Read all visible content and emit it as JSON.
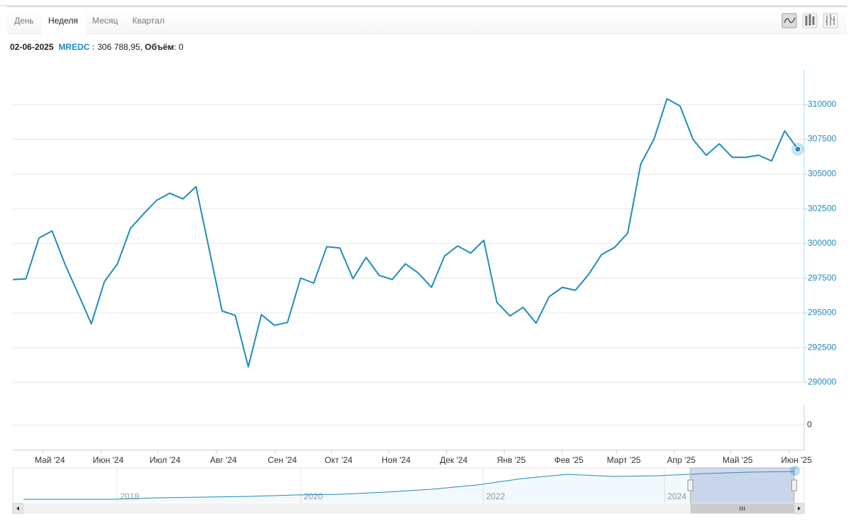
{
  "tabs": {
    "items": [
      "День",
      "Неделя",
      "Месяц",
      "Квартал"
    ],
    "active": 1
  },
  "info": {
    "date": "02-06-2025",
    "series_label": "MREDC :",
    "value_text": "306 788,95,",
    "volume_label": "Объём",
    "volume_text": ": 0"
  },
  "chart_data": {
    "type": "line",
    "color": "#1f8dbb",
    "values": [
      297400,
      297450,
      300390,
      300900,
      298480,
      296380,
      294220,
      297250,
      298540,
      301100,
      302130,
      303110,
      303620,
      303210,
      304090,
      299610,
      295140,
      294830,
      291130,
      294880,
      294110,
      294320,
      297510,
      297150,
      299770,
      299670,
      297460,
      299000,
      297710,
      297400,
      298540,
      297870,
      296840,
      299100,
      299820,
      299310,
      300230,
      295760,
      294780,
      295400,
      294270,
      296170,
      296840,
      296630,
      297760,
      299200,
      299720,
      300750,
      305730,
      307480,
      310410,
      309900,
      307480,
      306350,
      307170,
      306200,
      306200,
      306350,
      305940,
      308100,
      306789
    ],
    "xlim": [
      0,
      60
    ],
    "xticks": [
      {
        "value": 2.83,
        "label": "Май '24"
      },
      {
        "value": 7.29,
        "label": "Июн '24"
      },
      {
        "value": 11.64,
        "label": "Июл '24"
      },
      {
        "value": 16.1,
        "label": "Авг '24"
      },
      {
        "value": 20.6,
        "label": "Сен '24"
      },
      {
        "value": 24.9,
        "label": "Окт '24"
      },
      {
        "value": 29.3,
        "label": "Ноя '24"
      },
      {
        "value": 33.7,
        "label": "Дек '24"
      },
      {
        "value": 38.1,
        "label": "Янв '25"
      },
      {
        "value": 42.5,
        "label": "Фев '25"
      },
      {
        "value": 46.7,
        "label": "Март '25"
      },
      {
        "value": 51.1,
        "label": "Апр '25"
      },
      {
        "value": 55.4,
        "label": "Май '25"
      },
      {
        "value": 59.9,
        "label": "Июн '25"
      }
    ],
    "ylim": [
      290000,
      312500
    ],
    "yticks": [
      290000,
      292500,
      295000,
      297500,
      300000,
      302500,
      305000,
      307500,
      310000
    ],
    "grid": true,
    "volume_yticks": [
      0
    ],
    "navigator": {
      "values": [
        165100,
        165100,
        165100,
        172700,
        176400,
        180200,
        187800,
        191600,
        202900,
        218000,
        240700,
        274700,
        297300,
        286000,
        289800,
        301100,
        308700,
        312500
      ],
      "xlim": [
        0,
        17
      ],
      "ylim": [
        150000,
        320000
      ],
      "xticks": [
        {
          "value": 2.07,
          "label": "2018"
        },
        {
          "value": 6.12,
          "label": "2020"
        },
        {
          "value": 10.14,
          "label": "2022"
        },
        {
          "value": 14.14,
          "label": "2024"
        }
      ],
      "selected": [
        14.71,
        17
      ]
    }
  }
}
